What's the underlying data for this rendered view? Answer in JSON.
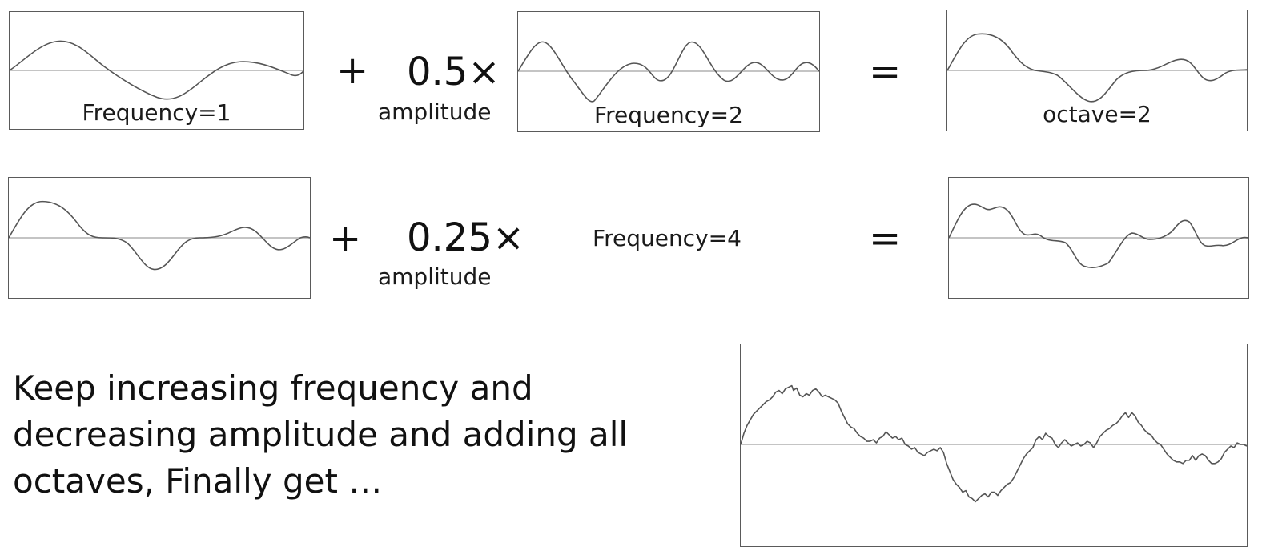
{
  "row1": {
    "panel_a_label": "Frequency=1",
    "plus": "+",
    "coefficient": "0.5×",
    "amplitude_label": "amplitude",
    "panel_b_label": "Frequency=2",
    "equals": "=",
    "panel_c_label": "octave=2"
  },
  "row2": {
    "plus": "+",
    "coefficient": "0.25×",
    "amplitude_label": "amplitude",
    "frequency_label": "Frequency=4",
    "equals": "="
  },
  "caption": "Keep increasing frequency and decreasing amplitude and adding all octaves, Finally get …",
  "colors": {
    "curve": "#555555",
    "baseline": "#b0b0b0",
    "frame": "#5a5a5a"
  }
}
